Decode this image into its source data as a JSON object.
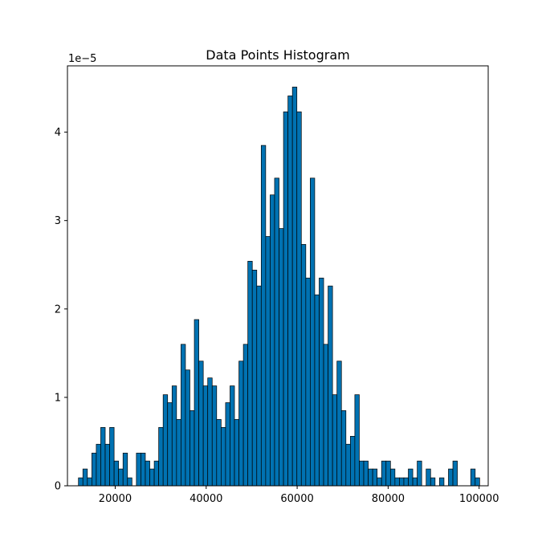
{
  "chart_data": {
    "type": "bar",
    "title": "Data Points Histogram",
    "xlabel": "",
    "ylabel": "",
    "y_offset_label": "1e−5",
    "y_scale_exponent": -5,
    "xlim": [
      9500,
      102000
    ],
    "ylim": [
      0,
      4.75
    ],
    "x_ticks": [
      20000,
      40000,
      60000,
      80000,
      100000
    ],
    "x_tick_labels": [
      "20000",
      "40000",
      "60000",
      "80000",
      "100000"
    ],
    "y_ticks": [
      0,
      1,
      2,
      3,
      4
    ],
    "y_tick_labels": [
      "0",
      "1",
      "2",
      "3",
      "4"
    ],
    "bar_color": "#0072b2",
    "edge_color": "#000000",
    "grid": false,
    "bin_start": 11919,
    "bin_width": 980,
    "values": [
      0.09,
      0.19,
      0.09,
      0.37,
      0.47,
      0.66,
      0.47,
      0.66,
      0.28,
      0.19,
      0.37,
      0.09,
      0,
      0.37,
      0.37,
      0.28,
      0.19,
      0.28,
      0.66,
      1.03,
      0.94,
      1.13,
      0.75,
      1.6,
      1.31,
      0.85,
      1.88,
      1.41,
      1.13,
      1.22,
      1.13,
      0.75,
      0.66,
      0.94,
      1.13,
      0.75,
      1.41,
      1.6,
      2.54,
      2.44,
      2.26,
      3.85,
      2.82,
      3.29,
      3.48,
      2.91,
      4.23,
      4.41,
      4.51,
      4.23,
      2.73,
      2.35,
      3.48,
      2.16,
      2.35,
      1.6,
      2.26,
      1.03,
      1.41,
      0.85,
      0.47,
      0.56,
      1.03,
      0.28,
      0.28,
      0.19,
      0.19,
      0.09,
      0.28,
      0.28,
      0.19,
      0.09,
      0.09,
      0.09,
      0.19,
      0.09,
      0.28,
      0,
      0.19,
      0.09,
      0,
      0.09,
      0,
      0.19,
      0.28,
      0,
      0,
      0,
      0.19,
      0.09
    ]
  }
}
